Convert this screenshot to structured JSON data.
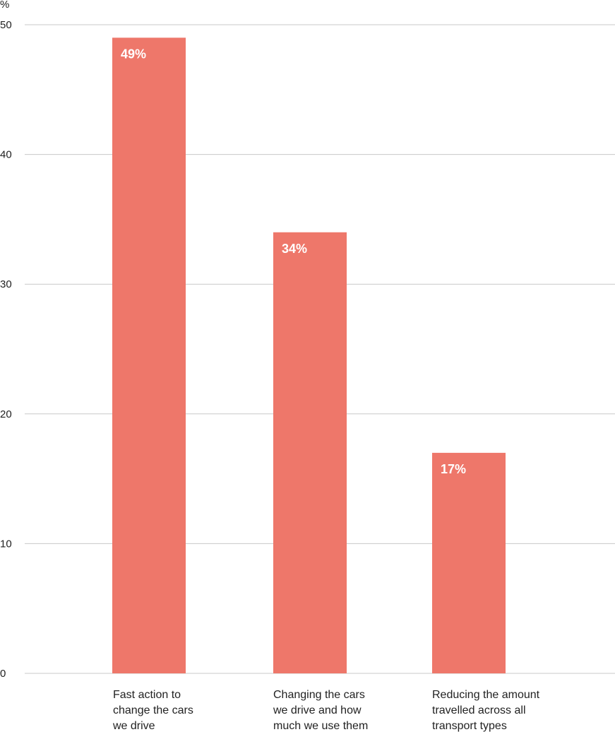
{
  "chart_data": {
    "type": "bar",
    "unit_label": "%",
    "categories": [
      [
        "Fast action to",
        "change the cars",
        "we drive"
      ],
      [
        "Changing the cars",
        "we drive and how",
        "much we use them"
      ],
      [
        "Reducing the amount",
        "travelled across all",
        "transport types"
      ]
    ],
    "values": [
      49,
      34,
      17
    ],
    "data_labels": [
      "49%",
      "34%",
      "17%"
    ],
    "ylim": [
      0,
      50
    ],
    "yticks": [
      0,
      10,
      20,
      30,
      40,
      50
    ],
    "grid": true,
    "colors": {
      "bar": "#ee776a",
      "grid": "#c8c8c8",
      "text": "#222222",
      "data_label": "#ffffff"
    }
  }
}
